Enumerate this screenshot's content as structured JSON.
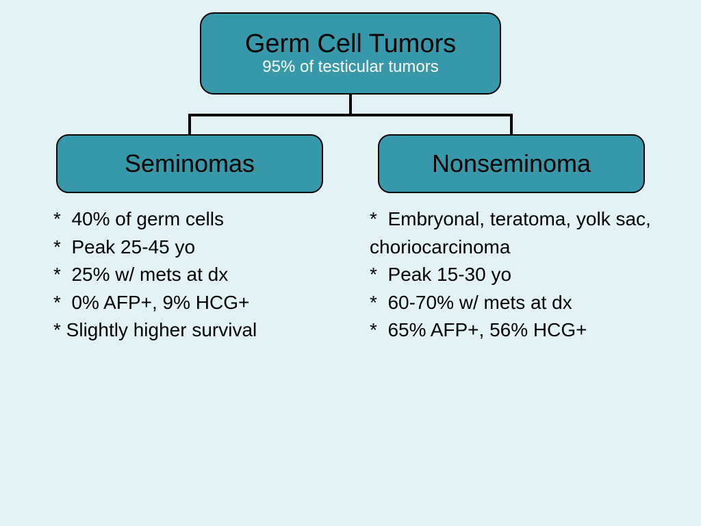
{
  "colors": {
    "background": "#e3f2f5",
    "node_fill": "#3798aa",
    "node_border": "#000000",
    "root_title_color": "#000000",
    "root_sub_color": "#ffffff",
    "child_text_color": "#000000",
    "bullet_text_color": "#000000",
    "connector_color": "#000000"
  },
  "layout": {
    "type": "tree",
    "node_border_radius": 18,
    "node_border_width": 2,
    "root_fontsize": 38,
    "sub_fontsize": 24,
    "child_fontsize": 36,
    "bullet_fontsize": 28
  },
  "root": {
    "title": "Germ Cell Tumors",
    "subtitle": "95% of testicular tumors"
  },
  "children": {
    "left": {
      "label": "Seminomas",
      "bullets": [
        "*  40% of germ cells",
        "*  Peak 25-45 yo",
        "*  25% w/ mets at dx",
        "*  0% AFP+, 9% HCG+",
        "* Slightly higher survival"
      ]
    },
    "right": {
      "label": "Nonseminoma",
      "bullets": [
        "*  Embryonal, teratoma, yolk sac, choriocarcinoma",
        "*  Peak 15-30 yo",
        "*  60-70% w/ mets at dx",
        "*  65% AFP+, 56% HCG+"
      ]
    }
  }
}
